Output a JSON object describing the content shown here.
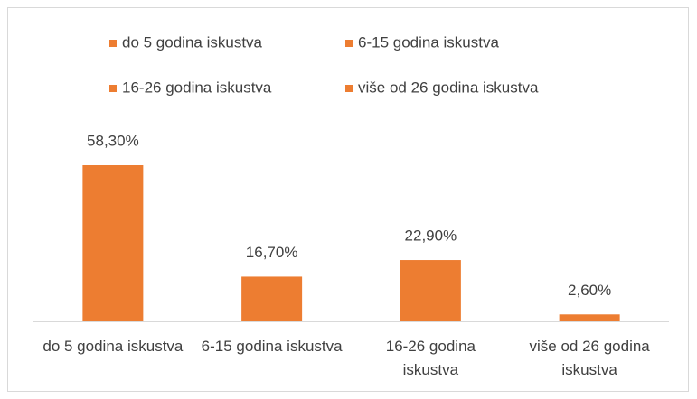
{
  "chart_data": {
    "type": "bar",
    "categories": [
      "do 5 godina iskustva",
      "6-15 godina iskustva",
      "16-26 godina iskustva",
      "više od 26 godina iskustva"
    ],
    "values": [
      58.3,
      16.7,
      22.9,
      2.6
    ],
    "value_labels": [
      "58,30%",
      "16,70%",
      "22,90%",
      "2,60%"
    ],
    "color": "#ed7d31",
    "legend": "top"
  }
}
